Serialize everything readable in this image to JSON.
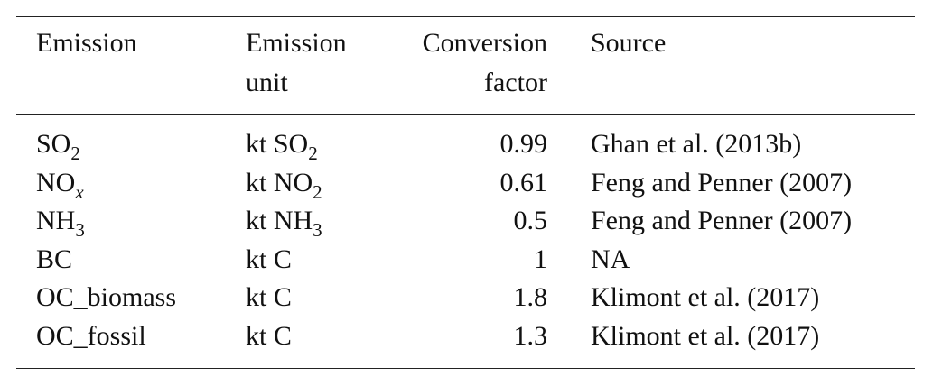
{
  "table": {
    "headers": [
      "Emission",
      "Emission unit",
      "Conversion factor",
      "Source"
    ],
    "rows": [
      {
        "emission": {
          "base": "SO",
          "sub": "2"
        },
        "unit": {
          "base": "kt SO",
          "sub": "2"
        },
        "factor": 0.99,
        "source": "Ghan et al. (2013b)"
      },
      {
        "emission": {
          "base": "NO",
          "sub": "x"
        },
        "unit": {
          "base": "kt NO",
          "sub": "2"
        },
        "factor": 0.61,
        "source": "Feng and Penner (2007)"
      },
      {
        "emission": {
          "base": "NH",
          "sub": "3"
        },
        "unit": {
          "base": "kt NH",
          "sub": "3"
        },
        "factor": 0.5,
        "source": "Feng and Penner (2007)"
      },
      {
        "emission": {
          "base": "BC"
        },
        "unit": {
          "base": "kt C"
        },
        "factor": 1,
        "source": "NA"
      },
      {
        "emission": {
          "base": "OC_biomass"
        },
        "unit": {
          "base": "kt C"
        },
        "factor": 1.8,
        "source": "Klimont et al. (2017)"
      },
      {
        "emission": {
          "base": "OC_fossil"
        },
        "unit": {
          "base": "kt C"
        },
        "factor": 1.3,
        "source": "Klimont et al. (2017)"
      }
    ]
  }
}
